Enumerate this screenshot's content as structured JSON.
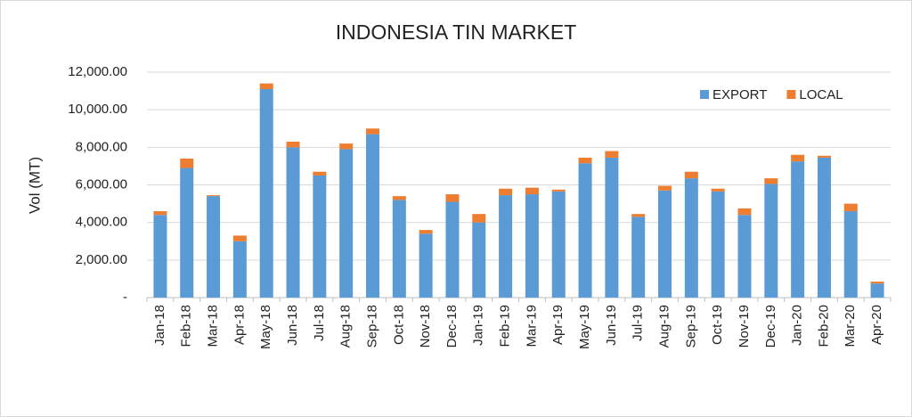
{
  "chart_data": {
    "type": "stacked_bar",
    "title": "INDONESIA TIN MARKET",
    "y_label": "Vol (MT)",
    "categories": [
      "Jan-18",
      "Feb-18",
      "Mar-18",
      "Apr-18",
      "May-18",
      "Jun-18",
      "Jul-18",
      "Aug-18",
      "Sep-18",
      "Oct-18",
      "Nov-18",
      "Dec-18",
      "Jan-19",
      "Feb-19",
      "Mar-19",
      "Apr-19",
      "May-19",
      "Jun-19",
      "Jul-19",
      "Aug-19",
      "Sep-19",
      "Oct-19",
      "Nov-19",
      "Dec-19",
      "Jan-20",
      "Feb-20",
      "Mar-20",
      "Apr-20"
    ],
    "series": [
      {
        "name": "EXPORT",
        "color": "#5b9bd5",
        "values": [
          4400,
          6900,
          5400,
          3000,
          11100,
          8000,
          6500,
          7900,
          8700,
          5200,
          3400,
          5100,
          4000,
          5450,
          5500,
          5650,
          7150,
          7450,
          4300,
          5700,
          6350,
          5650,
          4400,
          6050,
          7250,
          7450,
          4600,
          750
        ]
      },
      {
        "name": "LOCAL",
        "color": "#ed7d31",
        "values": [
          200,
          500,
          50,
          300,
          300,
          300,
          200,
          300,
          300,
          200,
          200,
          400,
          450,
          350,
          350,
          100,
          300,
          350,
          150,
          250,
          350,
          150,
          350,
          300,
          350,
          100,
          400,
          100
        ]
      }
    ],
    "ylim": [
      0,
      12000
    ],
    "yticks": [
      {
        "value": 0,
        "label": "-"
      },
      {
        "value": 2000,
        "label": "2,000.00"
      },
      {
        "value": 4000,
        "label": "4,000.00"
      },
      {
        "value": 6000,
        "label": "6,000.00"
      },
      {
        "value": 8000,
        "label": "8,000.00"
      },
      {
        "value": 10000,
        "label": "10,000.00"
      },
      {
        "value": 12000,
        "label": "12,000.00"
      }
    ],
    "grid": true,
    "legend": "top-right"
  }
}
